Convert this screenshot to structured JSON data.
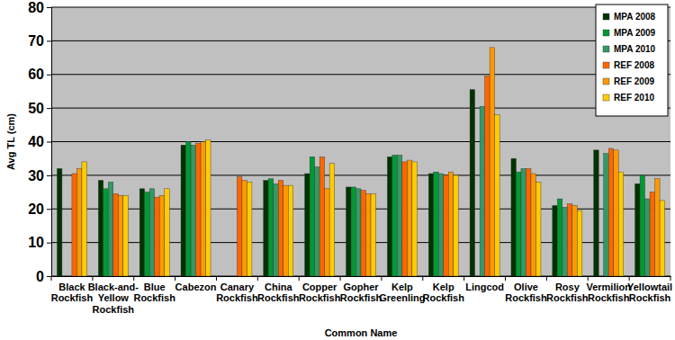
{
  "chart_data": {
    "type": "bar",
    "x_label": "Common Name",
    "y_label": "Avg TL (cm)",
    "categories": [
      "Black Rockfish",
      "Black-and-Yellow Rockfish",
      "Blue Rockfish",
      "Cabezon",
      "Canary Rockfish",
      "China Rockfish",
      "Copper Rockfish",
      "Gopher Rockfish",
      "Kelp Greenling",
      "Kelp Rockfish",
      "Lingcod",
      "Olive Rockfish",
      "Rosy Rockfish",
      "Vermilion Rockfish",
      "Yellowtail Rockfish"
    ],
    "series": [
      {
        "name": "MPA 2008",
        "color": "#003300",
        "values": [
          32,
          28.5,
          26,
          39,
          null,
          28.5,
          30.5,
          26.5,
          35.5,
          30.5,
          55.5,
          35,
          21,
          37.5,
          27.5
        ]
      },
      {
        "name": "MPA 2009",
        "color": "#009933",
        "values": [
          null,
          26,
          25,
          40,
          null,
          29,
          35.5,
          26.5,
          36,
          31,
          null,
          31,
          23,
          null,
          30
        ]
      },
      {
        "name": "MPA 2010",
        "color": "#339966",
        "values": [
          null,
          28,
          26,
          39,
          null,
          27.5,
          32.5,
          26,
          36,
          30.5,
          50.5,
          32,
          20.5,
          36.5,
          23
        ]
      },
      {
        "name": "REF 2008",
        "color": "#FF6600",
        "values": [
          30.5,
          24.5,
          23.5,
          39.5,
          29.5,
          28.5,
          35.5,
          25.5,
          34,
          30,
          59.5,
          32,
          21.5,
          38,
          25
        ]
      },
      {
        "name": "REF 2009",
        "color": "#FF9900",
        "values": [
          32,
          24,
          24,
          40,
          28.5,
          27,
          26,
          24.5,
          34.5,
          31,
          68,
          30.5,
          21,
          37.5,
          29
        ]
      },
      {
        "name": "REF 2010",
        "color": "#FFCC00",
        "values": [
          34,
          24,
          26,
          40.5,
          28,
          27,
          33.5,
          24.5,
          34,
          30,
          48,
          28,
          19.5,
          31,
          22.5
        ]
      }
    ],
    "ylim": [
      0,
      80
    ],
    "yticks": [
      0,
      10,
      20,
      30,
      40,
      50,
      60,
      70,
      80
    ],
    "grid": true,
    "legend": "top-right"
  }
}
